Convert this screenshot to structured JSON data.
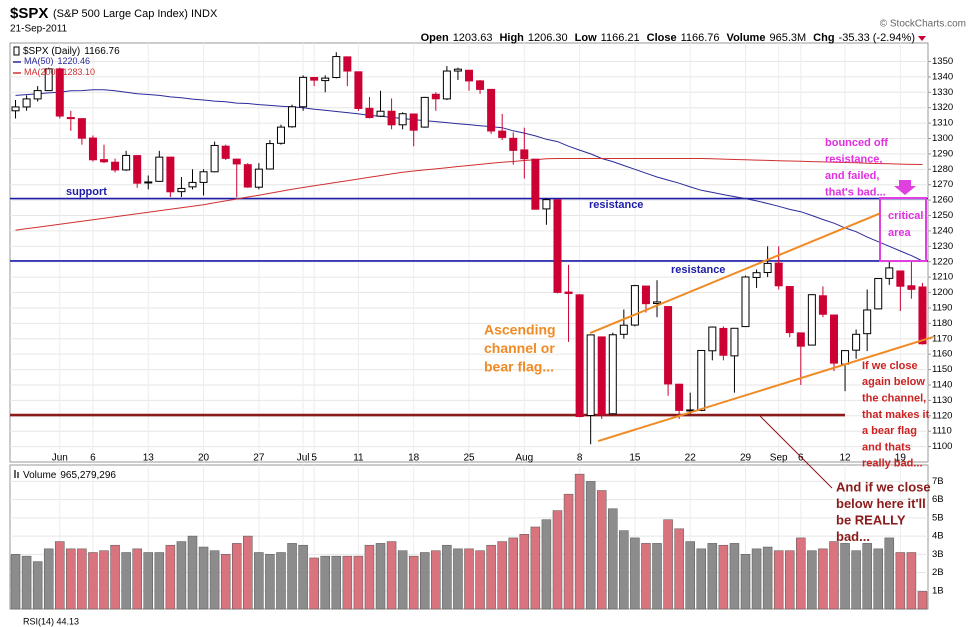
{
  "chart_data": {
    "type": "candlestick",
    "title": "$SPX",
    "subtitle": "(S&P 500 Large Cap Index) INDX",
    "date": "21-Sep-2011",
    "source": "© StockCharts.com",
    "quote": [
      {
        "label": "Open",
        "value": "1203.63"
      },
      {
        "label": "High",
        "value": "1206.30"
      },
      {
        "label": "Low",
        "value": "1166.21"
      },
      {
        "label": "Close",
        "value": "1166.76"
      },
      {
        "label": "Volume",
        "value": "965.3M"
      },
      {
        "label": "Chg",
        "value": "-35.33 (-2.94%)"
      }
    ],
    "name": "$SPX (Daily)",
    "categories": [
      null,
      null,
      null,
      null,
      "Jun",
      null,
      null,
      "6",
      null,
      null,
      null,
      null,
      "13",
      null,
      null,
      null,
      null,
      "20",
      null,
      null,
      null,
      null,
      "27",
      null,
      null,
      null,
      "Jul",
      "5",
      null,
      null,
      null,
      "11",
      null,
      null,
      null,
      null,
      "18",
      null,
      null,
      null,
      null,
      "25",
      null,
      null,
      null,
      null,
      "Aug",
      null,
      null,
      null,
      null,
      "8",
      null,
      null,
      null,
      null,
      "15",
      null,
      null,
      null,
      null,
      "22",
      null,
      null,
      null,
      null,
      "29",
      null,
      null,
      "Sep",
      null,
      "6",
      null,
      null,
      null,
      "12",
      null,
      null,
      null,
      null,
      "19",
      null,
      null
    ],
    "open": [
      1318.0,
      1320.5,
      1325.7,
      1331.1,
      1345.2,
      1313.6,
      1312.9,
      1300.3,
      1286.3,
      1284.6,
      1279.6,
      1288.9,
      1271.6,
      1272.2,
      1287.9,
      1265.5,
      1268.6,
      1271.5,
      1278.4,
      1295.0,
      1286.6,
      1283.0,
      1268.4,
      1280.2,
      1296.9,
      1307.6,
      1320.6,
      1339.6,
      1337.6,
      1339.6,
      1353.0,
      1343.3,
      1319.6,
      1314.5,
      1317.7,
      1308.9,
      1315.9,
      1307.4,
      1328.7,
      1325.7,
      1343.8,
      1344.3,
      1337.4,
      1331.9,
      1304.8,
      1300.1,
      1292.6,
      1286.6,
      1254.3,
      1260.2,
      1200.3,
      1198.5,
      1120.2,
      1171.2,
      1121.3,
      1172.9,
      1178.9,
      1204.2,
      1192.9,
      1190.9,
      1140.5,
      1123.6,
      1123.5,
      1162.2,
      1176.7,
      1158.9,
      1177.9,
      1209.8,
      1213.0,
      1219.1,
      1203.9,
      1173.8,
      1165.9,
      1197.9,
      1185.4,
      1153.5,
      1162.6,
      1173.3,
      1189.4,
      1209.2,
      1214.0,
      1204.4,
      1203.63
    ],
    "high": [
      1325,
      1328,
      1334,
      1346,
      1346,
      1318,
      1313,
      1302,
      1296,
      1287,
      1292,
      1289,
      1276,
      1292,
      1288,
      1275,
      1280,
      1280,
      1298,
      1296,
      1287,
      1284,
      1284,
      1299,
      1309,
      1322,
      1341,
      1340,
      1341,
      1356,
      1353,
      1343,
      1327,
      1331,
      1326,
      1317,
      1316,
      1327,
      1330,
      1347,
      1346,
      1344,
      1338,
      1331,
      1316,
      1304,
      1307,
      1286,
      1261,
      1260,
      1218,
      1199,
      1172.5,
      1171,
      1174,
      1189,
      1205,
      1204,
      1208,
      1191,
      1140.7,
      1135,
      1162.4,
      1178,
      1178,
      1177,
      1211,
      1215,
      1230,
      1230,
      1204,
      1174,
      1199,
      1204,
      1185.5,
      1162.5,
      1176,
      1202,
      1209.3,
      1220,
      1214.3,
      1220,
      1206.3
    ],
    "low": [
      1313,
      1318,
      1324,
      1331,
      1313,
      1305,
      1296,
      1285,
      1284,
      1278,
      1279,
      1268,
      1267,
      1272,
      1262,
      1262,
      1267,
      1263,
      1278,
      1286,
      1262,
      1268,
      1267,
      1280,
      1296,
      1307,
      1318,
      1334,
      1330,
      1339,
      1334,
      1318,
      1313,
      1314,
      1306,
      1306,
      1295,
      1307,
      1318,
      1325,
      1338,
      1331,
      1329,
      1303,
      1299,
      1283,
      1274,
      1254,
      1244,
      1199.5,
      1168,
      1119,
      1101.5,
      1118,
      1121,
      1170,
      1178,
      1187,
      1184,
      1133,
      1118,
      1121,
      1123,
      1156,
      1156,
      1135,
      1178,
      1203,
      1210,
      1202,
      1171,
      1140,
      1166,
      1184,
      1149,
      1136,
      1157,
      1162,
      1189,
      1205,
      1188,
      1196,
      1166.21
    ],
    "close": [
      1320.5,
      1325.7,
      1331.1,
      1345.2,
      1314.6,
      1312.9,
      1300.2,
      1286.2,
      1284.9,
      1279.6,
      1289.0,
      1271.0,
      1271.8,
      1287.9,
      1265.4,
      1267.6,
      1271.5,
      1278.4,
      1295.5,
      1287.1,
      1283.5,
      1268.5,
      1280.1,
      1296.7,
      1307.4,
      1320.6,
      1339.7,
      1337.9,
      1339.2,
      1353.2,
      1343.8,
      1319.5,
      1313.6,
      1317.7,
      1308.9,
      1316.1,
      1305.4,
      1326.7,
      1325.8,
      1343.8,
      1345.0,
      1337.4,
      1331.9,
      1304.9,
      1300.7,
      1292.3,
      1286.9,
      1254.1,
      1260.3,
      1200.1,
      1199.4,
      1119.5,
      1172.5,
      1120.8,
      1172.6,
      1178.8,
      1204.5,
      1192.8,
      1193.9,
      1140.7,
      1123.5,
      1123.8,
      1162.4,
      1177.6,
      1159.3,
      1176.8,
      1210.1,
      1212.9,
      1218.9,
      1204.4,
      1174.0,
      1165.2,
      1198.6,
      1185.9,
      1154.2,
      1162.3,
      1172.9,
      1188.7,
      1209.1,
      1216.0,
      1204.1,
      1202.1,
      1166.76
    ],
    "up_color": "#000000",
    "down_color": "#cc0033",
    "overlays": [
      {
        "name": "MA(50)",
        "color": "#2a2a9a",
        "values": [
          1328,
          1328.5,
          1329,
          1329.6,
          1330,
          1331,
          1331.1,
          1331.7,
          1331.7,
          1331,
          1330,
          1329,
          1328.6,
          1328,
          1327,
          1326.5,
          1325.6,
          1325,
          1324.3,
          1323.8,
          1323,
          1322.7,
          1322,
          1321.5,
          1321,
          1320.5,
          1320,
          1319,
          1318.3,
          1317.5,
          1316.8,
          1316,
          1315,
          1314.5,
          1313.7,
          1313,
          1312.3,
          1311.6,
          1311,
          1310.3,
          1309.6,
          1309,
          1308.3,
          1307.7,
          1307,
          1305,
          1303.5,
          1301.7,
          1299.5,
          1298,
          1295,
          1292.5,
          1290,
          1287,
          1285,
          1282.5,
          1280,
          1277.5,
          1275,
          1273,
          1271,
          1268.6,
          1266.4,
          1265,
          1263.6,
          1262.3,
          1261,
          1259.5,
          1257.8,
          1256,
          1254,
          1252.5,
          1250,
          1247.4,
          1245,
          1242,
          1239.5,
          1236,
          1233,
          1230,
          1227,
          1224,
          1220.46
        ]
      },
      {
        "name": "MA(200)",
        "color": "#d03030",
        "value_label": "1283.10",
        "values": [
          1240.5,
          1241.5,
          1242.4,
          1243.4,
          1244.4,
          1245.3,
          1246.3,
          1247.3,
          1248.2,
          1249.2,
          1250.2,
          1251.2,
          1252.1,
          1253.1,
          1254.1,
          1255,
          1256,
          1257,
          1258.3,
          1259.5,
          1260.7,
          1262,
          1263.2,
          1264.5,
          1265.7,
          1267,
          1268.2,
          1269.3,
          1270.4,
          1271.5,
          1272.6,
          1273.7,
          1274.8,
          1275.9,
          1277,
          1278.1,
          1278.9,
          1279.6,
          1280.3,
          1281,
          1281.8,
          1282.5,
          1283.2,
          1284,
          1284.6,
          1285.1,
          1285.7,
          1286.2,
          1286.8,
          1287,
          1287,
          1287,
          1287,
          1287,
          1287,
          1287,
          1287,
          1287,
          1287,
          1287,
          1287,
          1287,
          1287,
          1286.8,
          1286.6,
          1286.4,
          1286.2,
          1286,
          1285.8,
          1285.6,
          1285.4,
          1285.2,
          1285,
          1284.8,
          1284.6,
          1284.4,
          1284.2,
          1284,
          1283.8,
          1283.6,
          1283.4,
          1283.2,
          1283.1
        ]
      }
    ],
    "ylim": [
      1090,
      1362
    ],
    "yticks": [
      1100,
      1110,
      1120,
      1130,
      1140,
      1150,
      1160,
      1170,
      1180,
      1190,
      1200,
      1210,
      1220,
      1230,
      1240,
      1250,
      1260,
      1270,
      1280,
      1290,
      1300,
      1310,
      1320,
      1330,
      1340,
      1350
    ],
    "grid": true,
    "hlines": [
      {
        "value": 1261,
        "color": "#1c1ca8"
      },
      {
        "value": 1220.5,
        "color": "#1c1ca8"
      },
      {
        "value": 1120.5,
        "color": "#8b1a1a"
      }
    ],
    "trendlines": [
      {
        "x": [
          51.95,
          78.23
        ],
        "y": [
          1173.7,
          1251.6
        ],
        "color": "#f08a24"
      },
      {
        "x": [
          52.68,
          82.95
        ],
        "y": [
          1103.6,
          1171.1
        ],
        "color": "#f08a24"
      }
    ],
    "annotations": [
      {
        "lines": [
          "support"
        ],
        "color": "#1c1ca8"
      },
      {
        "lines": [
          "resistance"
        ],
        "color": "#1c1ca8"
      },
      {
        "lines": [
          "resistance"
        ],
        "color": "#1c1ca8"
      },
      {
        "lines": [
          "Ascending",
          "channel or",
          "bear flag..."
        ],
        "color": "#f08a24"
      },
      {
        "lines": [
          "bounced off",
          "resistance,",
          "and failed,",
          "that's bad..."
        ],
        "color": "#e030e0"
      },
      {
        "lines": [
          "critical",
          "area"
        ],
        "color": "#e030e0"
      },
      {
        "lines": [
          "If we close",
          "again below",
          "the channel,",
          "that makes it",
          "a bear flag",
          "and thats",
          "really bad..."
        ],
        "color": "#cc2222"
      },
      {
        "lines": [
          "And if we close",
          "below here it'll",
          "be REALLY",
          "bad..."
        ],
        "color": "#8b1a1a"
      }
    ],
    "volume": {
      "name": "Volume",
      "value_label": "965,279,296",
      "values": [
        3000000000.0,
        2900000000.0,
        2600000000.0,
        3300000000.0,
        3700000000.0,
        3300000000.0,
        3300000000.0,
        3100000000.0,
        3200000000.0,
        3500000000.0,
        3100000000.0,
        3300000000.0,
        3100000000.0,
        3100000000.0,
        3500000000.0,
        3700000000.0,
        4000000000.0,
        3400000000.0,
        3200000000.0,
        3000000000.0,
        3600000000.0,
        4000000000.0,
        3100000000.0,
        3000000000.0,
        3100000000.0,
        3600000000.0,
        3500000000.0,
        2800000000.0,
        2900000000.0,
        2900000000.0,
        2900000000.0,
        2900000000.0,
        3500000000.0,
        3600000000.0,
        3700000000.0,
        3200000000.0,
        2900000000.0,
        3100000000.0,
        3200000000.0,
        3500000000.0,
        3300000000.0,
        3300000000.0,
        3200000000.0,
        3500000000.0,
        3700000000.0,
        3900000000.0,
        4100000000.0,
        4500000000.0,
        4900000000.0,
        5400000000.0,
        6300000000.0,
        7400000000.0,
        7000000000.0,
        6500000000.0,
        5500000000.0,
        4300000000.0,
        3900000000.0,
        3600000000.0,
        3600000000.0,
        4900000000.0,
        4400000000.0,
        3700000000.0,
        3300000000.0,
        3600000000.0,
        3500000000.0,
        3600000000.0,
        3000000000.0,
        3300000000.0,
        3400000000.0,
        3200000000.0,
        3200000000.0,
        3900000000.0,
        3200000000.0,
        3300000000.0,
        3700000000.0,
        3600000000.0,
        3200000000.0,
        3600000000.0,
        3300000000.0,
        3900000000.0,
        3100000000.0,
        3100000000.0,
        965279296
      ],
      "up_color": "#8c8c8c",
      "down_color": "#d9737d",
      "ylim": [
        0,
        7900000000.0
      ],
      "yticks": [
        {
          "value": 1000000000.0,
          "label": "1B"
        },
        {
          "value": 2000000000.0,
          "label": "2B"
        },
        {
          "value": 3000000000.0,
          "label": "3B"
        },
        {
          "value": 4000000000.0,
          "label": "4B"
        },
        {
          "value": 5000000000.0,
          "label": "5B"
        },
        {
          "value": 6000000000.0,
          "label": "6B"
        },
        {
          "value": 7000000000.0,
          "label": "7B"
        }
      ]
    },
    "footer": "RSI(14) 44.13"
  }
}
